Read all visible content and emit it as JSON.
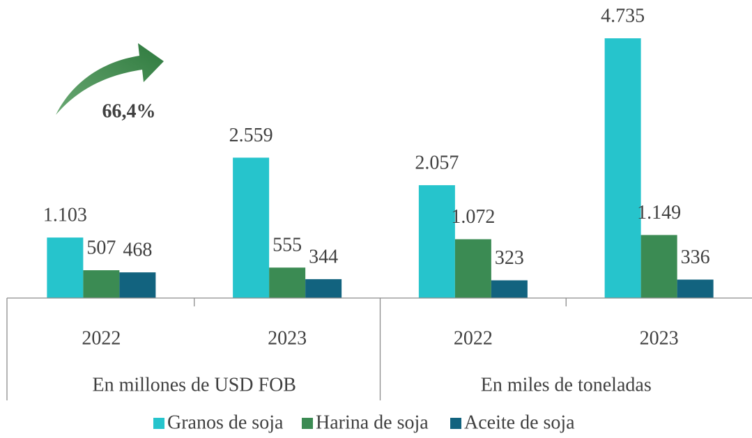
{
  "chart_data": {
    "type": "bar",
    "annotation": "66,4%",
    "categories": [
      "2022",
      "2023",
      "2022",
      "2023"
    ],
    "category_groups": [
      {
        "label": "En millones de USD FOB",
        "categories": [
          "2022",
          "2023"
        ]
      },
      {
        "label": "En miles de toneladas",
        "categories": [
          "2022",
          "2023"
        ]
      }
    ],
    "series": [
      {
        "name": "Granos de soja",
        "color": "#26c4cc",
        "values": [
          1103,
          2559,
          2057,
          4735
        ],
        "value_labels": [
          "1.103",
          "2.559",
          "2.057",
          "4.735"
        ]
      },
      {
        "name": "Harina de soja",
        "color": "#3b8b53",
        "values": [
          507,
          555,
          1072,
          1149
        ],
        "value_labels": [
          "507",
          "555",
          "1.072",
          "1.149"
        ]
      },
      {
        "name": "Aceite de soja",
        "color": "#12637f",
        "values": [
          468,
          344,
          323,
          336
        ],
        "value_labels": [
          "468",
          "344",
          "323",
          "336"
        ]
      }
    ],
    "legend": "bottom"
  }
}
